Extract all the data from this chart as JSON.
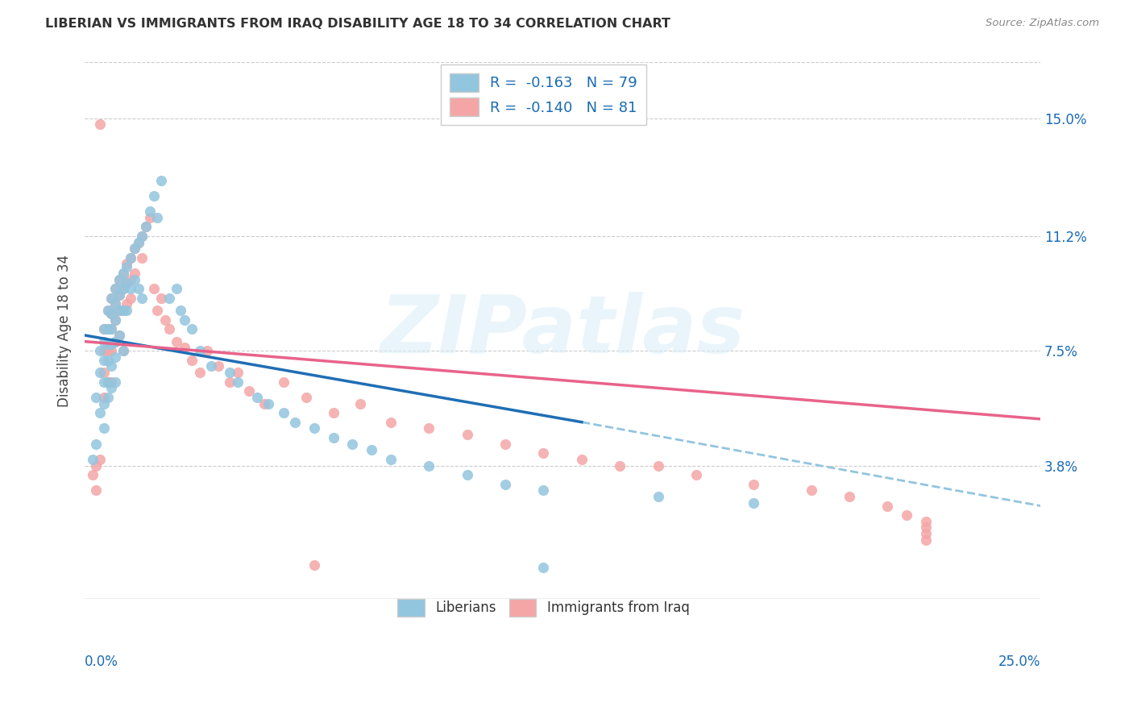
{
  "title": "LIBERIAN VS IMMIGRANTS FROM IRAQ DISABILITY AGE 18 TO 34 CORRELATION CHART",
  "source": "Source: ZipAtlas.com",
  "ylabel": "Disability Age 18 to 34",
  "ytick_labels": [
    "3.8%",
    "7.5%",
    "11.2%",
    "15.0%"
  ],
  "ytick_values": [
    0.038,
    0.075,
    0.112,
    0.15
  ],
  "xlim": [
    0.0,
    0.25
  ],
  "ylim": [
    -0.005,
    0.168
  ],
  "legend_r_blue": "-0.163",
  "legend_n_blue": "79",
  "legend_r_pink": "-0.140",
  "legend_n_pink": "81",
  "legend_label_blue": "Liberians",
  "legend_label_pink": "Immigrants from Iraq",
  "blue_color": "#92c5de",
  "pink_color": "#f4a6a6",
  "trendline_blue_solid_color": "#1f6eb5",
  "trendline_blue_dash_color": "#92c5de",
  "trendline_pink_color": "#e8638a",
  "watermark": "ZIPatlas",
  "blue_x": [
    0.002,
    0.003,
    0.003,
    0.004,
    0.004,
    0.004,
    0.005,
    0.005,
    0.005,
    0.005,
    0.005,
    0.005,
    0.006,
    0.006,
    0.006,
    0.006,
    0.006,
    0.006,
    0.007,
    0.007,
    0.007,
    0.007,
    0.007,
    0.007,
    0.008,
    0.008,
    0.008,
    0.008,
    0.008,
    0.008,
    0.009,
    0.009,
    0.009,
    0.009,
    0.01,
    0.01,
    0.01,
    0.01,
    0.011,
    0.011,
    0.011,
    0.012,
    0.012,
    0.013,
    0.013,
    0.014,
    0.014,
    0.015,
    0.015,
    0.016,
    0.017,
    0.018,
    0.019,
    0.02,
    0.022,
    0.024,
    0.025,
    0.026,
    0.028,
    0.03,
    0.033,
    0.038,
    0.04,
    0.045,
    0.048,
    0.052,
    0.055,
    0.06,
    0.065,
    0.07,
    0.075,
    0.08,
    0.09,
    0.1,
    0.11,
    0.12,
    0.15,
    0.175,
    0.12
  ],
  "blue_y": [
    0.04,
    0.06,
    0.045,
    0.075,
    0.068,
    0.055,
    0.082,
    0.078,
    0.072,
    0.065,
    0.058,
    0.05,
    0.088,
    0.082,
    0.077,
    0.072,
    0.065,
    0.06,
    0.092,
    0.087,
    0.082,
    0.077,
    0.07,
    0.063,
    0.095,
    0.09,
    0.085,
    0.078,
    0.073,
    0.065,
    0.098,
    0.093,
    0.088,
    0.08,
    0.1,
    0.095,
    0.088,
    0.075,
    0.102,
    0.097,
    0.088,
    0.105,
    0.095,
    0.108,
    0.098,
    0.11,
    0.095,
    0.112,
    0.092,
    0.115,
    0.12,
    0.125,
    0.118,
    0.13,
    0.092,
    0.095,
    0.088,
    0.085,
    0.082,
    0.075,
    0.07,
    0.068,
    0.065,
    0.06,
    0.058,
    0.055,
    0.052,
    0.05,
    0.047,
    0.045,
    0.043,
    0.04,
    0.038,
    0.035,
    0.032,
    0.03,
    0.028,
    0.026,
    0.005
  ],
  "pink_x": [
    0.002,
    0.003,
    0.003,
    0.004,
    0.004,
    0.005,
    0.005,
    0.005,
    0.005,
    0.006,
    0.006,
    0.006,
    0.006,
    0.007,
    0.007,
    0.007,
    0.007,
    0.007,
    0.008,
    0.008,
    0.008,
    0.008,
    0.009,
    0.009,
    0.009,
    0.009,
    0.01,
    0.01,
    0.01,
    0.01,
    0.011,
    0.011,
    0.011,
    0.012,
    0.012,
    0.012,
    0.013,
    0.013,
    0.014,
    0.015,
    0.015,
    0.016,
    0.017,
    0.018,
    0.019,
    0.02,
    0.021,
    0.022,
    0.024,
    0.026,
    0.028,
    0.03,
    0.032,
    0.035,
    0.038,
    0.04,
    0.043,
    0.047,
    0.052,
    0.058,
    0.065,
    0.072,
    0.08,
    0.09,
    0.1,
    0.11,
    0.12,
    0.13,
    0.14,
    0.15,
    0.16,
    0.175,
    0.19,
    0.2,
    0.21,
    0.215,
    0.22,
    0.22,
    0.22,
    0.22,
    0.06
  ],
  "pink_y": [
    0.035,
    0.038,
    0.03,
    0.148,
    0.04,
    0.082,
    0.075,
    0.068,
    0.06,
    0.088,
    0.082,
    0.075,
    0.065,
    0.092,
    0.087,
    0.082,
    0.075,
    0.065,
    0.095,
    0.09,
    0.085,
    0.078,
    0.098,
    0.093,
    0.088,
    0.08,
    0.1,
    0.095,
    0.088,
    0.075,
    0.103,
    0.097,
    0.09,
    0.105,
    0.098,
    0.092,
    0.108,
    0.1,
    0.11,
    0.112,
    0.105,
    0.115,
    0.118,
    0.095,
    0.088,
    0.092,
    0.085,
    0.082,
    0.078,
    0.076,
    0.072,
    0.068,
    0.075,
    0.07,
    0.065,
    0.068,
    0.062,
    0.058,
    0.065,
    0.06,
    0.055,
    0.058,
    0.052,
    0.05,
    0.048,
    0.045,
    0.042,
    0.04,
    0.038,
    0.038,
    0.035,
    0.032,
    0.03,
    0.028,
    0.025,
    0.022,
    0.02,
    0.018,
    0.016,
    0.014,
    0.006
  ],
  "trend_blue_x_start": 0.0,
  "trend_blue_x_solid_end": 0.13,
  "trend_blue_x_dash_end": 0.25,
  "trend_blue_y_start": 0.08,
  "trend_blue_y_solid_end": 0.052,
  "trend_blue_y_dash_end": 0.025,
  "trend_pink_x_start": 0.0,
  "trend_pink_x_end": 0.25,
  "trend_pink_y_start": 0.078,
  "trend_pink_y_end": 0.053
}
